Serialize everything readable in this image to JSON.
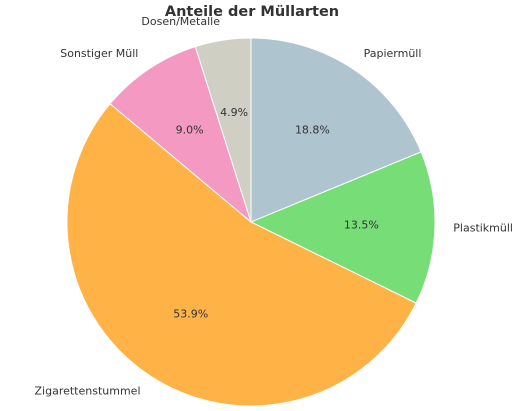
{
  "chart_data": {
    "type": "pie",
    "title": "Anteile der Müllarten",
    "start_angle_deg": 90,
    "direction": "clockwise",
    "slices": [
      {
        "label": "Papiermüll",
        "value": 18.8,
        "pct_label": "18.8%",
        "color": "#aec4cf"
      },
      {
        "label": "Plastikmüll",
        "value": 13.5,
        "pct_label": "13.5%",
        "color": "#77dd77"
      },
      {
        "label": "Zigarettenstummel",
        "value": 53.9,
        "pct_label": "53.9%",
        "color": "#ffb347"
      },
      {
        "label": "Sonstiger Müll",
        "value": 9.0,
        "pct_label": "9.0%",
        "color": "#f49ac2"
      },
      {
        "label": "Dosen/Metalle",
        "value": 4.9,
        "pct_label": "4.9%",
        "color": "#cfcfc4"
      }
    ]
  }
}
